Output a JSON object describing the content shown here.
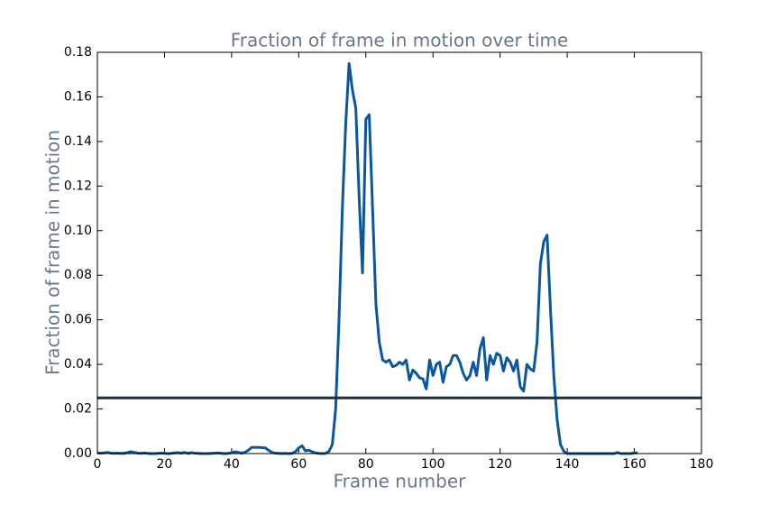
{
  "chart_data": {
    "type": "line",
    "title": "Fraction of frame in motion over time",
    "x_label": "Frame number",
    "y_label": "Fraction of frame in motion",
    "x": [
      0,
      1,
      2,
      3,
      4,
      5,
      6,
      7,
      8,
      9,
      10,
      11,
      12,
      13,
      14,
      15,
      16,
      17,
      18,
      19,
      20,
      21,
      22,
      23,
      24,
      25,
      26,
      27,
      28,
      29,
      30,
      31,
      32,
      33,
      34,
      35,
      36,
      37,
      38,
      39,
      40,
      41,
      42,
      43,
      44,
      45,
      46,
      47,
      48,
      49,
      50,
      51,
      52,
      53,
      54,
      55,
      56,
      57,
      58,
      59,
      60,
      61,
      62,
      63,
      64,
      65,
      66,
      67,
      68,
      69,
      70,
      71,
      72,
      73,
      74,
      75,
      76,
      77,
      78,
      79,
      80,
      81,
      82,
      83,
      84,
      85,
      86,
      87,
      88,
      89,
      90,
      91,
      92,
      93,
      94,
      95,
      96,
      97,
      98,
      99,
      100,
      101,
      102,
      103,
      104,
      105,
      106,
      107,
      108,
      109,
      110,
      111,
      112,
      113,
      114,
      115,
      116,
      117,
      118,
      119,
      120,
      121,
      122,
      123,
      124,
      125,
      126,
      127,
      128,
      129,
      130,
      131,
      132,
      133,
      134,
      135,
      136,
      137,
      138,
      139,
      140,
      141,
      142,
      143,
      144,
      145,
      146,
      147,
      148,
      149,
      150,
      151,
      152,
      153,
      154,
      155,
      156,
      157,
      158,
      159,
      160,
      161
    ],
    "series": [
      {
        "color": "#0b579f",
        "values": [
          0.0003,
          0.0002,
          0.0003,
          0.0005,
          0.0002,
          0.0001,
          0.0002,
          0.0001,
          0.0001,
          0.0005,
          0.0008,
          0.0005,
          0.0002,
          0.0001,
          0.0003,
          0.0001,
          0,
          0,
          0.0001,
          0.0002,
          0.0001,
          0,
          0.0001,
          0.0003,
          0.0004,
          0.0002,
          0.0005,
          0.0001,
          0.0004,
          0.0002,
          0.0001,
          0,
          0,
          0,
          0.0001,
          0.0002,
          0.0003,
          0.0001,
          0,
          0.0001,
          0.0004,
          0.0008,
          0.0005,
          0.0002,
          0.0006,
          0.0015,
          0.0028,
          0.0028,
          0.0028,
          0.0027,
          0.0026,
          0.0015,
          0.0005,
          0.0002,
          0.0001,
          0,
          0.0001,
          0,
          0.0001,
          0.0008,
          0.0025,
          0.0035,
          0.0012,
          0.0015,
          0.0008,
          0.0003,
          0.0001,
          0,
          0.0001,
          0.001,
          0.004,
          0.02,
          0.06,
          0.11,
          0.148,
          0.175,
          0.163,
          0.155,
          0.115,
          0.081,
          0.15,
          0.152,
          0.11,
          0.067,
          0.05,
          0.042,
          0.041,
          0.042,
          0.039,
          0.0395,
          0.041,
          0.04,
          0.042,
          0.033,
          0.0375,
          0.036,
          0.034,
          0.0335,
          0.029,
          0.042,
          0.035,
          0.04,
          0.041,
          0.032,
          0.039,
          0.04,
          0.044,
          0.044,
          0.041,
          0.036,
          0.033,
          0.035,
          0.041,
          0.035,
          0.047,
          0.052,
          0.033,
          0.044,
          0.04,
          0.045,
          0.044,
          0.037,
          0.043,
          0.041,
          0.037,
          0.042,
          0.03,
          0.028,
          0.04,
          0.038,
          0.037,
          0.05,
          0.085,
          0.095,
          0.098,
          0.065,
          0.035,
          0.015,
          0.004,
          0.001,
          0,
          0,
          0,
          0,
          0,
          0,
          0,
          0,
          0,
          0,
          0,
          0,
          0,
          0,
          0,
          0.0005,
          0,
          0,
          0,
          0,
          0.0003,
          0.0003
        ]
      }
    ],
    "threshold": 0.025,
    "threshold_color": "#1b2f3e",
    "xlim": [
      0,
      180
    ],
    "xticks": [
      0,
      20,
      40,
      60,
      80,
      100,
      120,
      140,
      160,
      180
    ],
    "ylim": [
      0,
      0.18
    ],
    "yticks": [
      {
        "value": 0,
        "label": "0.00"
      },
      {
        "value": 0.02,
        "label": "0.02"
      },
      {
        "value": 0.04,
        "label": "0.04"
      },
      {
        "value": 0.06,
        "label": "0.06"
      },
      {
        "value": 0.08,
        "label": "0.08"
      },
      {
        "value": 0.1,
        "label": "0.10"
      },
      {
        "value": 0.12,
        "label": "0.12"
      },
      {
        "value": 0.14,
        "label": "0.14"
      },
      {
        "value": 0.16,
        "label": "0.16"
      },
      {
        "value": 0.18,
        "label": "0.18"
      }
    ],
    "grid": false
  }
}
